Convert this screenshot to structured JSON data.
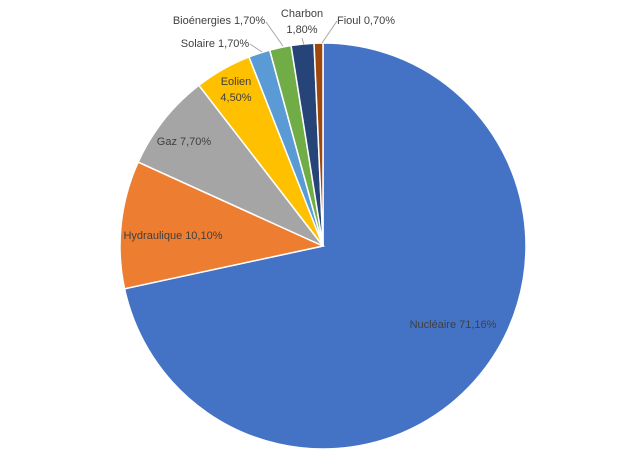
{
  "chart_data": {
    "type": "pie",
    "categories": [
      "Nucléaire",
      "Hydraulique",
      "Gaz",
      "Eolien",
      "Solaire",
      "Bioénergies",
      "Charbon",
      "Fioul"
    ],
    "values": [
      71.16,
      10.1,
      7.7,
      4.5,
      1.7,
      1.7,
      1.8,
      0.7
    ],
    "value_labels": [
      "71,16%",
      "10,10%",
      "7,70%",
      "4,50%",
      "1,70%",
      "1,70%",
      "1,80%",
      "0,70%"
    ],
    "colors": [
      "#4472c4",
      "#ed7d31",
      "#a5a5a5",
      "#ffc000",
      "#5b9bd5",
      "#70ad47",
      "#264478",
      "#9e480e"
    ]
  }
}
